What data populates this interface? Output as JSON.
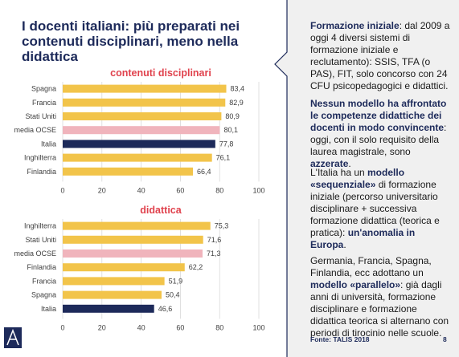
{
  "slide": {
    "title": "I docenti italiani: più preparati nei contenuti disciplinari, meno nella didattica",
    "page_number": "8",
    "source": "Fonte: TALIS 2018"
  },
  "colors": {
    "navy": "#1d2a5a",
    "gold": "#f2c44a",
    "pink": "#f0b4bc",
    "red_title": "#e0424d",
    "panel_bg": "#f0f0f0"
  },
  "right_text": {
    "p1_bold": "Formazione iniziale",
    "p1_rest": ": dal 2009 a oggi 4 diversi sistemi di formazione iniziale e reclutamento): SSIS, TFA (o PAS), FIT, solo concorso con 24 CFU psicopedagogici e didattici.",
    "p2_bold": "Nessun modello ha affrontato le competenze didattiche dei docenti in modo convincente",
    "p2_rest": ": oggi, con il solo requisito della laurea magistrale, sono ",
    "p2_bold2": "azzerate",
    "p2_end": ".",
    "p3_a": "L'Italia ha un ",
    "p3_b": "modello «sequenziale»",
    "p3_c": " di formazione iniziale (percorso universitario disciplinare + successiva formazione didattica (teorica e pratica): ",
    "p3_d": "un'anomalia in Europa",
    "p3_e": ".",
    "p4_a": "Germania, Francia, Spagna, Finlandia, ecc adottano un ",
    "p4_b": "modello «parallelo»",
    "p4_c": ": già dagli anni di università, formazione disciplinare e formazione didattica teorica si alternano con periodi di tirocinio nelle scuole."
  },
  "chart_data": [
    {
      "type": "bar",
      "orientation": "horizontal",
      "title": "contenuti disciplinari",
      "categories": [
        "Spagna",
        "Francia",
        "Stati Uniti",
        "media OCSE",
        "Italia",
        "Inghilterra",
        "Finlandia"
      ],
      "values": [
        83.4,
        82.9,
        80.9,
        80.1,
        77.8,
        76.1,
        66.4
      ],
      "value_labels": [
        "83,4",
        "82,9",
        "80,9",
        "80,1",
        "77,8",
        "76,1",
        "66,4"
      ],
      "highlight": {
        "Italia": "navy",
        "media OCSE": "pink"
      },
      "xlim": [
        0,
        100
      ],
      "xticks": [
        "0",
        "20",
        "40",
        "60",
        "80",
        "100"
      ],
      "grid": true
    },
    {
      "type": "bar",
      "orientation": "horizontal",
      "title": "didattica",
      "categories": [
        "Inghilterra",
        "Stati Uniti",
        "media OCSE",
        "Finlandia",
        "Francia",
        "Spagna",
        "Italia"
      ],
      "values": [
        75.3,
        71.6,
        71.3,
        62.2,
        51.9,
        50.4,
        46.6
      ],
      "value_labels": [
        "75,3",
        "71,6",
        "71,3",
        "62,2",
        "51,9",
        "50,4",
        "46,6"
      ],
      "highlight": {
        "Italia": "navy",
        "media OCSE": "pink"
      },
      "xlim": [
        0,
        100
      ],
      "xticks": [
        "0",
        "20",
        "40",
        "60",
        "80",
        "100"
      ],
      "grid": true
    }
  ]
}
